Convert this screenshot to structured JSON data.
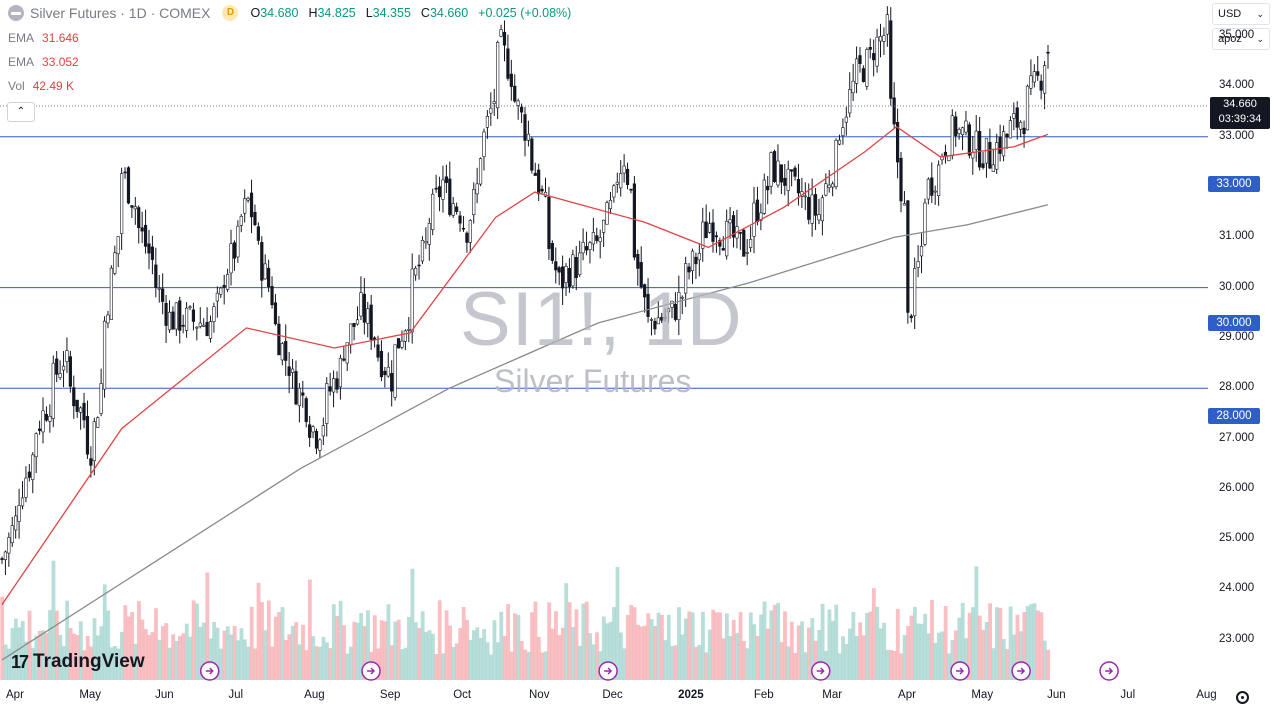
{
  "header": {
    "symbol_title": "Silver Futures · 1D · COMEX",
    "badge": "D",
    "ohlc": [
      {
        "k": "O",
        "v": "34.680"
      },
      {
        "k": "H",
        "v": "34.825"
      },
      {
        "k": "L",
        "v": "34.355"
      },
      {
        "k": "C",
        "v": "34.660"
      }
    ],
    "change": "+0.025 (+0.08%)"
  },
  "indicators": [
    {
      "name": "EMA",
      "value": "31.646"
    },
    {
      "name": "EMA",
      "value": "33.052"
    },
    {
      "name": "Vol",
      "value": "42.49 K"
    }
  ],
  "controls": {
    "collapse_glyph": "⌃",
    "currency": "USD",
    "scale_mode": "apoz",
    "chevron": "⌄",
    "settings_icon": "gear-icon"
  },
  "watermark": {
    "symbol": "SI1!, 1D",
    "name": "Silver Futures"
  },
  "branding": {
    "name": "TradingView",
    "mark": "17"
  },
  "colors": {
    "up": "#089981",
    "down": "#f23645",
    "ema50": "#e04343",
    "ema200": "#8a8a8a",
    "hline": "#2e5ec7",
    "vol_up": "#9fd3cc",
    "vol_down": "#f7a9ae"
  },
  "chart_data": {
    "type": "candlestick",
    "title": "Silver Futures · 1D · COMEX",
    "ylim": [
      22.2,
      35.6
    ],
    "x_ticks": [
      "Apr",
      "May",
      "Jun",
      "Jul",
      "Aug",
      "Sep",
      "Oct",
      "Nov",
      "Dec",
      "2025",
      "Feb",
      "Mar",
      "Apr",
      "May",
      "Jun",
      "Jul",
      "Aug"
    ],
    "y_ticks": [
      "35.000",
      "34.000",
      "33.000",
      "32.000",
      "31.000",
      "30.000",
      "29.000",
      "28.000",
      "27.000",
      "26.000",
      "25.000",
      "24.000",
      "23.000"
    ],
    "last_price": "34.660",
    "countdown": "03:39:34",
    "horizontal_levels": [
      "33.000",
      "30.000",
      "28.000"
    ],
    "price_anchors": [
      {
        "x": "Apr 1, 2024",
        "y": 24.6
      },
      {
        "x": "Apr 15, 2024",
        "y": 27.2
      },
      {
        "x": "Apr 25, 2024",
        "y": 28.6
      },
      {
        "x": "May 7, 2024",
        "y": 26.8
      },
      {
        "x": "May 20, 2024",
        "y": 32.3
      },
      {
        "x": "Jun 7, 2024",
        "y": 29.4
      },
      {
        "x": "Jun 25, 2024",
        "y": 29.3
      },
      {
        "x": "Jul 10, 2024",
        "y": 31.7
      },
      {
        "x": "Jul 25, 2024",
        "y": 28.6
      },
      {
        "x": "Aug 7, 2024",
        "y": 27.1
      },
      {
        "x": "Aug 25, 2024",
        "y": 29.7
      },
      {
        "x": "Sep 6, 2024",
        "y": 28.2
      },
      {
        "x": "Sep 27, 2024",
        "y": 32.1
      },
      {
        "x": "Oct 8, 2024",
        "y": 31.2
      },
      {
        "x": "Oct 22, 2024",
        "y": 34.8
      },
      {
        "x": "Nov 5, 2024",
        "y": 32.3
      },
      {
        "x": "Nov 14, 2024",
        "y": 30.1
      },
      {
        "x": "Dec 2, 2024",
        "y": 31.0
      },
      {
        "x": "Dec 11, 2024",
        "y": 32.6
      },
      {
        "x": "Dec 20, 2024",
        "y": 29.3
      },
      {
        "x": "Dec 31, 2024",
        "y": 29.5
      },
      {
        "x": "Jan 15, 2025",
        "y": 31.3
      },
      {
        "x": "Jan 29, 2025",
        "y": 30.8
      },
      {
        "x": "Feb 10, 2025",
        "y": 32.4
      },
      {
        "x": "Mar 1, 2025",
        "y": 31.4
      },
      {
        "x": "Mar 14, 2025",
        "y": 34.0
      },
      {
        "x": "Mar 28, 2025",
        "y": 35.1
      },
      {
        "x": "Apr 4, 2025",
        "y": 31.5
      },
      {
        "x": "Apr 7, 2025",
        "y": 29.3
      },
      {
        "x": "Apr 14, 2025",
        "y": 31.9
      },
      {
        "x": "Apr 25, 2025",
        "y": 33.2
      },
      {
        "x": "May 9, 2025",
        "y": 32.6
      },
      {
        "x": "May 23, 2025",
        "y": 33.4
      },
      {
        "x": "Jun 3, 2025",
        "y": 34.7
      }
    ],
    "series": [
      {
        "values": [
          {
            "x": "Apr 1, 2024",
            "y": 23.7
          },
          {
            "x": "May 20, 2024",
            "y": 27.2
          },
          {
            "x": "Jul 10, 2024",
            "y": 29.2
          },
          {
            "x": "Aug 15, 2024",
            "y": 28.8
          },
          {
            "x": "Sep 15, 2024",
            "y": 29.1
          },
          {
            "x": "Oct 20, 2024",
            "y": 31.4
          },
          {
            "x": "Nov 5, 2024",
            "y": 31.9
          },
          {
            "x": "Dec 20, 2024",
            "y": 31.3
          },
          {
            "x": "Jan 15, 2025",
            "y": 30.8
          },
          {
            "x": "Feb 15, 2025",
            "y": 31.6
          },
          {
            "x": "Mar 20, 2025",
            "y": 32.7
          },
          {
            "x": "Apr 2, 2025",
            "y": 33.2
          },
          {
            "x": "Apr 20, 2025",
            "y": 32.6
          },
          {
            "x": "May 20, 2025",
            "y": 32.8
          },
          {
            "x": "Jun 3, 2025",
            "y": 33.05
          }
        ]
      },
      {
        "values": [
          {
            "x": "Apr 1, 2024",
            "y": 22.6
          },
          {
            "x": "Jun 1, 2024",
            "y": 24.5
          },
          {
            "x": "Aug 1, 2024",
            "y": 26.4
          },
          {
            "x": "Oct 1, 2024",
            "y": 28.0
          },
          {
            "x": "Dec 1, 2024",
            "y": 29.3
          },
          {
            "x": "Feb 1, 2025",
            "y": 30.1
          },
          {
            "x": "Apr 1, 2025",
            "y": 31.0
          },
          {
            "x": "May 1, 2025",
            "y": 31.25
          },
          {
            "x": "Jun 3, 2025",
            "y": 31.65
          }
        ]
      }
    ],
    "grid": false
  }
}
